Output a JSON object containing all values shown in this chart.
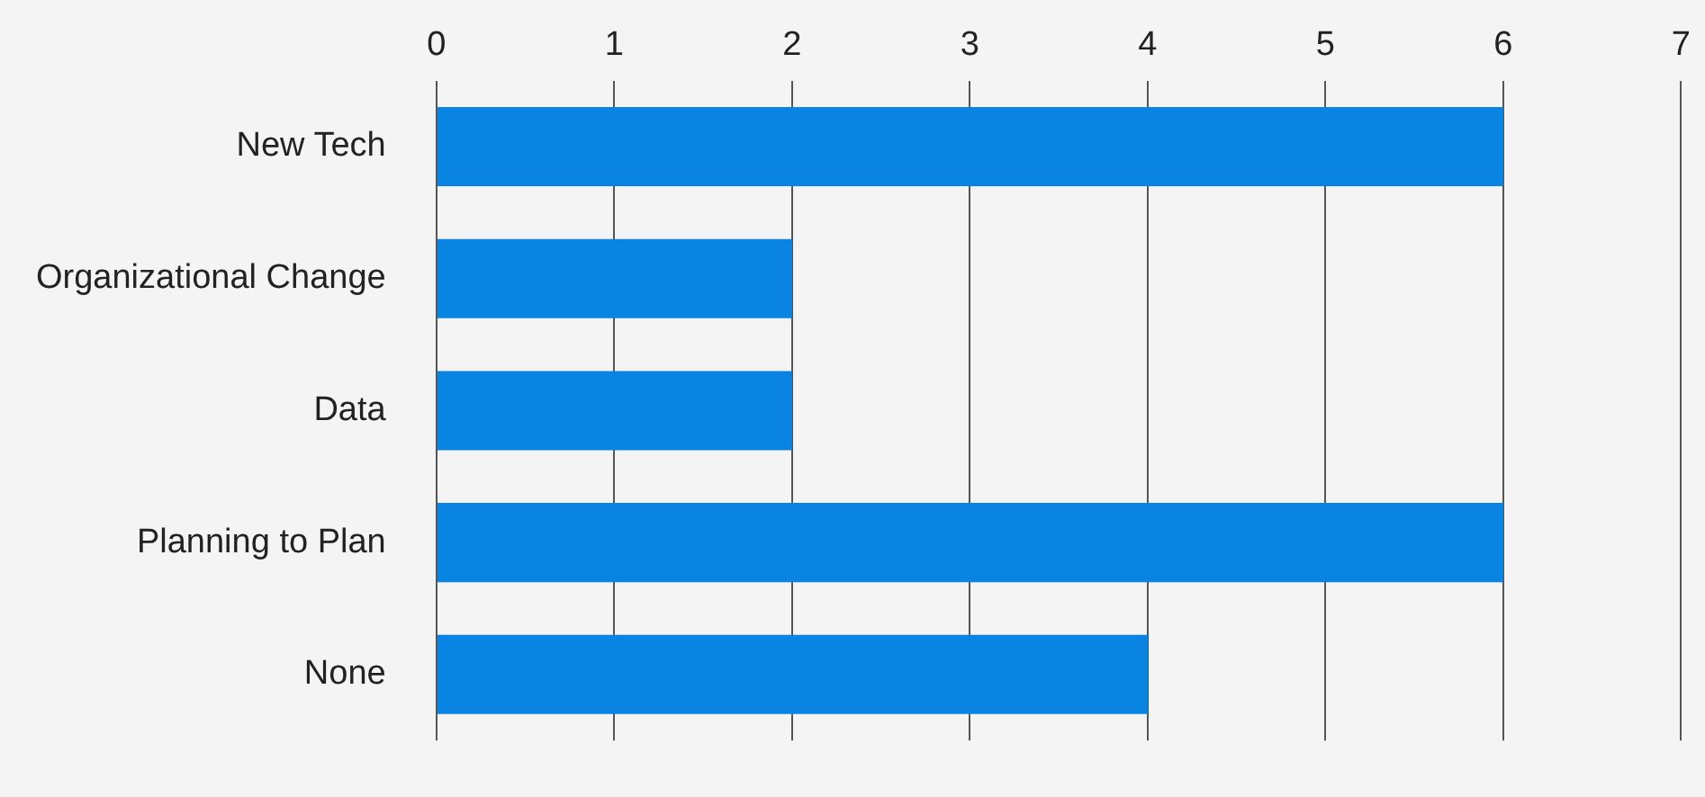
{
  "chart_data": {
    "type": "bar",
    "orientation": "horizontal",
    "categories": [
      "New Tech",
      "Organizational Change",
      "Data",
      "Planning to Plan",
      "None"
    ],
    "values": [
      6,
      2,
      2,
      6,
      4
    ],
    "color": "#0984e3",
    "xlim": [
      0,
      7
    ],
    "xticks": [
      0,
      1,
      2,
      3,
      4,
      5,
      6,
      7
    ],
    "grid": "x"
  }
}
